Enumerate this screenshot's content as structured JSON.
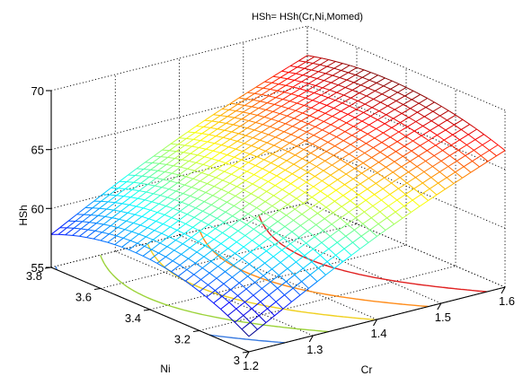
{
  "chart_data": {
    "type": "surface",
    "title": "HSh= HSh(Cr,Ni,Momed)",
    "xlabel": "Cr",
    "ylabel": "Ni",
    "zlabel": "HSh",
    "xlim": [
      1.2,
      1.6
    ],
    "ylim": [
      3.0,
      3.8
    ],
    "zlim": [
      55,
      70
    ],
    "x_ticks": [
      "1.2",
      "1.3",
      "1.4",
      "1.5",
      "1.6"
    ],
    "y_ticks": [
      "3",
      "3.2",
      "3.4",
      "3.6",
      "3.8"
    ],
    "z_ticks": [
      "55",
      "60",
      "65",
      "70"
    ],
    "grid": true,
    "colormap": "jet",
    "surface_corners": [
      {
        "x": 1.2,
        "y": 3.0,
        "z": 56.3
      },
      {
        "x": 1.2,
        "y": 3.8,
        "z": 57.8
      },
      {
        "x": 1.6,
        "y": 3.0,
        "z": 66.6
      },
      {
        "x": 1.6,
        "y": 3.8,
        "z": 67.5
      }
    ],
    "contour_projection": {
      "floor": true,
      "levels": [
        58,
        60,
        62,
        64,
        66
      ],
      "colors": [
        "#3a7be0",
        "#9cd33a",
        "#f0d020",
        "#ff8c1a",
        "#e02020"
      ]
    }
  }
}
